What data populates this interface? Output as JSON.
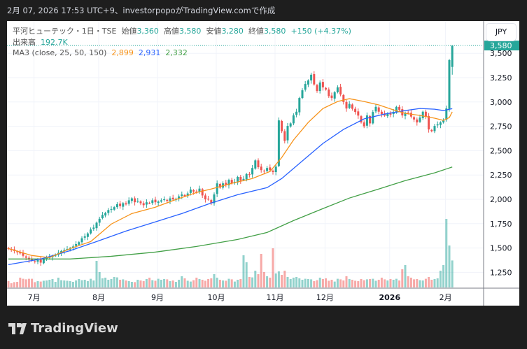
{
  "header": {
    "text": "2月 07, 2026 17:53 UTC+9、investorpopoがTradingView.comで作成"
  },
  "legend": {
    "symbol": "平河ヒューテック・1日・TSE",
    "open_label": "始値",
    "open": "3,360",
    "high_label": "高値",
    "high": "3,580",
    "low_label": "安値",
    "low": "3,280",
    "close_label": "終値",
    "close": "3,580",
    "change": "+150 (+4.37%)",
    "volume_label": "出来高",
    "volume": "192.7K",
    "ma_label": "MA3 (close, 25, 50, 150)",
    "ma25": "2,899",
    "ma50": "2,931",
    "ma150": "2,332"
  },
  "currency_button": "JPY",
  "last_price_tag": "3,580",
  "logo_text": "TradingView",
  "colors": {
    "up": "#26a69a",
    "down": "#ef5350",
    "ma25": "#f7931a",
    "ma50": "#2962ff",
    "ma150": "#43a047"
  },
  "chart_data": {
    "type": "candlestick",
    "y_ticks": [
      "3,500",
      "3,250",
      "3,000",
      "2,750",
      "2,500",
      "2,250",
      "2,000",
      "1,750",
      "1,500",
      "1,250"
    ],
    "y_tick_values": [
      3500,
      3250,
      3000,
      2750,
      2500,
      2250,
      2000,
      1750,
      1500,
      1250
    ],
    "x_ticks": [
      {
        "label": "7月",
        "index": 8
      },
      {
        "label": "8月",
        "index": 30
      },
      {
        "label": "9月",
        "index": 50
      },
      {
        "label": "10月",
        "index": 70
      },
      {
        "label": "11月",
        "index": 90
      },
      {
        "label": "12月",
        "index": 107
      },
      {
        "label": "2026",
        "index": 129
      },
      {
        "label": "2月",
        "index": 148
      }
    ],
    "closes": [
      1490,
      1480,
      1470,
      1460,
      1445,
      1420,
      1400,
      1380,
      1372,
      1360,
      1375,
      1350,
      1387,
      1400,
      1410,
      1420,
      1423,
      1450,
      1470,
      1480,
      1490,
      1500,
      1516,
      1540,
      1560,
      1600,
      1620,
      1650,
      1690,
      1710,
      1760,
      1800,
      1840,
      1860,
      1890,
      1900,
      1920,
      1950,
      1930,
      1960,
      1948,
      1990,
      2010,
      1970,
      1984,
      1960,
      1940,
      1970,
      1962,
      1990,
      1970,
      1977,
      1990,
      2000,
      1984,
      2010,
      2000,
      2005,
      2030,
      2050,
      2034,
      2060,
      2100,
      2080,
      2070,
      2110,
      2040,
      2000,
      1998,
      1960,
      2050,
      2164,
      2120,
      2164,
      2150,
      2200,
      2164,
      2180,
      2230,
      2192,
      2210,
      2260,
      2250,
      2322,
      2400,
      2330,
      2300,
      2290,
      2322,
      2300,
      2280,
      2336,
      2811,
      2700,
      2600,
      2754,
      2780,
      2862,
      2900,
      3041,
      3120,
      3185,
      3221,
      3280,
      3180,
      3113,
      3200,
      3150,
      3128,
      3060,
      3041,
      3100,
      3150,
      3077,
      3000,
      2933,
      2980,
      2930,
      2897,
      2860,
      2790,
      2750,
      2862,
      2780,
      2897,
      2950,
      2900,
      2876,
      2860,
      2883,
      2870,
      2897,
      2950,
      2920,
      2862,
      2890,
      2883,
      2850,
      2820,
      2790,
      2840,
      2900,
      2850,
      2718,
      2700,
      2754,
      2770,
      2790,
      2811,
      2933,
      3430,
      3580
    ],
    "last_bar": {
      "open": 3360,
      "high": 3580,
      "low": 3280,
      "close": 3580
    },
    "volumes_k": [
      45,
      30,
      38,
      40,
      70,
      62,
      58,
      62,
      62,
      38,
      45,
      42,
      48,
      50,
      55,
      60,
      40,
      70,
      52,
      50,
      48,
      45,
      40,
      50,
      60,
      52,
      55,
      45,
      62,
      50,
      190,
      110,
      65,
      70,
      55,
      60,
      75,
      72,
      55,
      58,
      50,
      45,
      40,
      38,
      55,
      50,
      45,
      60,
      70,
      52,
      48,
      62,
      55,
      60,
      58,
      45,
      50,
      40,
      55,
      80,
      65,
      48,
      42,
      52,
      70,
      60,
      55,
      48,
      60,
      65,
      95,
      70,
      55,
      50,
      48,
      62,
      58,
      42,
      55,
      60,
      230,
      180,
      75,
      72,
      120,
      95,
      240,
      110,
      80,
      70,
      280,
      100,
      115,
      90,
      120,
      75,
      60,
      70,
      75,
      65,
      55,
      62,
      60,
      58,
      45,
      52,
      70,
      60,
      65,
      48,
      55,
      42,
      62,
      58,
      50,
      80,
      60,
      55,
      48,
      45,
      60,
      52,
      58,
      60,
      62,
      48,
      55,
      70,
      58,
      50,
      60,
      55,
      62,
      50,
      130,
      160,
      80,
      70,
      58,
      60,
      52,
      50,
      62,
      75,
      55,
      60,
      65,
      120,
      160,
      490,
      300,
      193
    ],
    "ma25": [
      [
        0,
        1494
      ],
      [
        8,
        1423
      ],
      [
        14,
        1401
      ],
      [
        21,
        1494
      ],
      [
        28,
        1566
      ],
      [
        35,
        1746
      ],
      [
        42,
        1854
      ],
      [
        50,
        1919
      ],
      [
        57,
        1998
      ],
      [
        64,
        2070
      ],
      [
        69,
        2106
      ],
      [
        76,
        2164
      ],
      [
        83,
        2214
      ],
      [
        89,
        2286
      ],
      [
        93,
        2430
      ],
      [
        97,
        2610
      ],
      [
        102,
        2790
      ],
      [
        107,
        2933
      ],
      [
        112,
        3005
      ],
      [
        116,
        3034
      ],
      [
        121,
        3005
      ],
      [
        126,
        2970
      ],
      [
        131,
        2919
      ],
      [
        135,
        2883
      ],
      [
        140,
        2862
      ],
      [
        145,
        2833
      ],
      [
        148,
        2811
      ],
      [
        150,
        2840
      ],
      [
        151,
        2899
      ]
    ],
    "ma50": [
      [
        0,
        1329
      ],
      [
        11,
        1387
      ],
      [
        21,
        1473
      ],
      [
        30,
        1566
      ],
      [
        40,
        1674
      ],
      [
        50,
        1768
      ],
      [
        59,
        1854
      ],
      [
        69,
        1962
      ],
      [
        78,
        2048
      ],
      [
        88,
        2120
      ],
      [
        93,
        2214
      ],
      [
        100,
        2394
      ],
      [
        107,
        2574
      ],
      [
        114,
        2718
      ],
      [
        121,
        2826
      ],
      [
        128,
        2876
      ],
      [
        135,
        2912
      ],
      [
        140,
        2933
      ],
      [
        145,
        2926
      ],
      [
        148,
        2912
      ],
      [
        151,
        2931
      ]
    ],
    "ma150": [
      [
        0,
        1387
      ],
      [
        21,
        1387
      ],
      [
        35,
        1415
      ],
      [
        50,
        1458
      ],
      [
        64,
        1516
      ],
      [
        78,
        1588
      ],
      [
        88,
        1660
      ],
      [
        97,
        1782
      ],
      [
        107,
        1905
      ],
      [
        116,
        2013
      ],
      [
        126,
        2106
      ],
      [
        135,
        2192
      ],
      [
        145,
        2272
      ],
      [
        151,
        2332
      ]
    ]
  }
}
